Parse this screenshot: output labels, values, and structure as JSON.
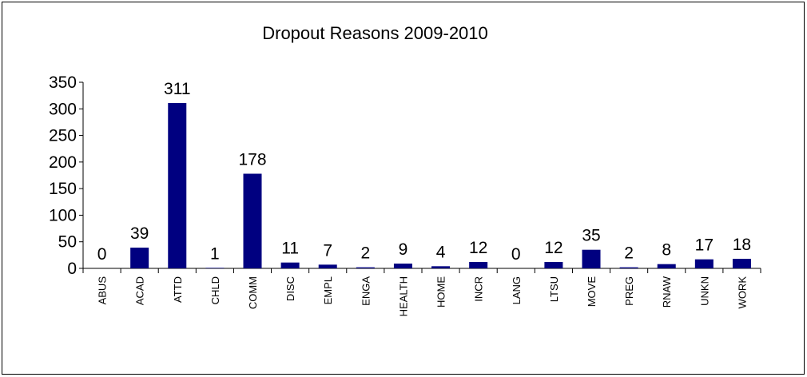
{
  "chart_data": {
    "type": "bar",
    "title": "Dropout Reasons 2009-2010",
    "xlabel": "",
    "ylabel": "",
    "ylim": [
      0,
      350
    ],
    "yticks": [
      0,
      50,
      100,
      150,
      200,
      250,
      300,
      350
    ],
    "categories": [
      "ABUS",
      "ACAD",
      "ATTD",
      "CHLD",
      "COMM",
      "DISC",
      "EMPL",
      "ENGA",
      "HEALTH",
      "HOME",
      "INCR",
      "LANG",
      "LTSU",
      "MOVE",
      "PREG",
      "RNAW",
      "UNKN",
      "WORK"
    ],
    "values": [
      0,
      39,
      311,
      1,
      178,
      11,
      7,
      2,
      9,
      4,
      12,
      0,
      12,
      35,
      2,
      8,
      17,
      18
    ],
    "bar_color": "#000080",
    "grid": false,
    "legend": "none"
  }
}
